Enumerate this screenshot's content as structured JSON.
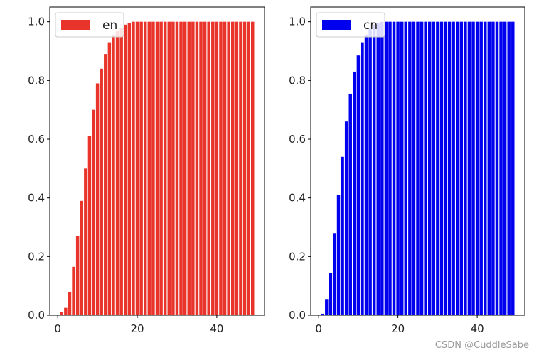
{
  "watermark": "CSDN @CuddleSabe",
  "chart_data": [
    {
      "type": "bar",
      "color": "#e8342a",
      "legend": "en",
      "legend_position": "upper-left",
      "x": [
        0,
        1,
        2,
        3,
        4,
        5,
        6,
        7,
        8,
        9,
        10,
        11,
        12,
        13,
        14,
        15,
        16,
        17,
        18,
        19,
        20,
        21,
        22,
        23,
        24,
        25,
        26,
        27,
        28,
        29,
        30,
        31,
        32,
        33,
        34,
        35,
        36,
        37,
        38,
        39,
        40,
        41,
        42,
        43,
        44,
        45,
        46,
        47,
        48,
        49
      ],
      "values": [
        0,
        0.01,
        0.025,
        0.08,
        0.165,
        0.27,
        0.39,
        0.5,
        0.61,
        0.7,
        0.79,
        0.84,
        0.89,
        0.93,
        0.955,
        0.97,
        0.98,
        0.99,
        0.995,
        1,
        1,
        1,
        1,
        1,
        1,
        1,
        1,
        1,
        1,
        1,
        1,
        1,
        1,
        1,
        1,
        1,
        1,
        1,
        1,
        1,
        1,
        1,
        1,
        1,
        1,
        1,
        1,
        1,
        1,
        1
      ],
      "xlim": [
        -2,
        52
      ],
      "ylim": [
        0,
        1.05
      ],
      "xticks": [
        "0",
        "20",
        "40"
      ],
      "yticks": [
        "0.0",
        "0.2",
        "0.4",
        "0.6",
        "0.8",
        "1.0"
      ],
      "grid": false
    },
    {
      "type": "bar",
      "color": "#0000ee",
      "legend": "cn",
      "legend_position": "upper-left",
      "x": [
        0,
        1,
        2,
        3,
        4,
        5,
        6,
        7,
        8,
        9,
        10,
        11,
        12,
        13,
        14,
        15,
        16,
        17,
        18,
        19,
        20,
        21,
        22,
        23,
        24,
        25,
        26,
        27,
        28,
        29,
        30,
        31,
        32,
        33,
        34,
        35,
        36,
        37,
        38,
        39,
        40,
        41,
        42,
        43,
        44,
        45,
        46,
        47,
        48,
        49
      ],
      "values": [
        0,
        0.005,
        0.055,
        0.145,
        0.28,
        0.41,
        0.54,
        0.66,
        0.755,
        0.83,
        0.885,
        0.93,
        0.955,
        0.975,
        0.99,
        0.995,
        1,
        1,
        1,
        1,
        1,
        1,
        1,
        1,
        1,
        1,
        1,
        1,
        1,
        1,
        1,
        1,
        1,
        1,
        1,
        1,
        1,
        1,
        1,
        1,
        1,
        1,
        1,
        1,
        1,
        1,
        1,
        1,
        1,
        1
      ],
      "xlim": [
        -2,
        52
      ],
      "ylim": [
        0,
        1.05
      ],
      "xticks": [
        "0",
        "20",
        "40"
      ],
      "yticks": [
        "0.0",
        "0.2",
        "0.4",
        "0.6",
        "0.8",
        "1.0"
      ],
      "grid": false
    }
  ]
}
